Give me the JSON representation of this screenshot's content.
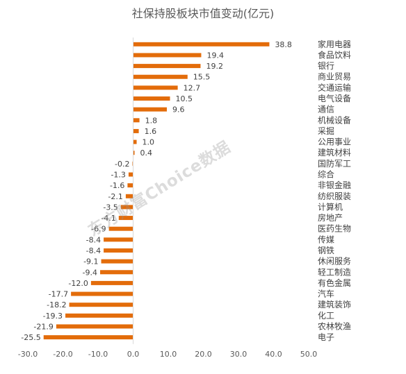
{
  "chart_data": {
    "type": "bar",
    "orientation": "horizontal",
    "title": "社保持股板块市值变动(亿元)",
    "xlabel": "",
    "ylabel": "",
    "xlim": [
      -30,
      50
    ],
    "x_ticks": [
      "-30.0",
      "-20.0",
      "-10.0",
      "0.0",
      "10.0",
      "20.0",
      "30.0",
      "40.0",
      "50.0"
    ],
    "grid": false,
    "legend": "none",
    "bar_color": "#E36C0A",
    "categories": [
      "家用电器",
      "食品饮料",
      "银行",
      "商业贸易",
      "交通运输",
      "电气设备",
      "通信",
      "机械设备",
      "采掘",
      "公用事业",
      "建筑材料",
      "国防军工",
      "综合",
      "非银金融",
      "纺织服装",
      "计算机",
      "房地产",
      "医药生物",
      "传媒",
      "钢铁",
      "休闲服务",
      "轻工制造",
      "有色金属",
      "汽车",
      "建筑装饰",
      "化工",
      "农林牧渔",
      "电子"
    ],
    "values": [
      38.8,
      19.4,
      19.2,
      15.5,
      12.7,
      10.5,
      9.6,
      1.8,
      1.6,
      1.0,
      0.4,
      -0.2,
      -1.3,
      -1.6,
      -2.1,
      -3.5,
      -4.1,
      -6.9,
      -8.4,
      -8.4,
      -9.1,
      -9.4,
      -12.0,
      -17.7,
      -18.2,
      -19.3,
      -21.9,
      -25.5
    ],
    "value_labels": [
      "38.8",
      "19.4",
      "19.2",
      "15.5",
      "12.7",
      "10.5",
      "9.6",
      "1.8",
      "1.6",
      "1.0",
      "0.4",
      "-0.2",
      "-1.3",
      "-1.6",
      "-2.1",
      "-3.5",
      "-4.1",
      "-6.9",
      "-8.4",
      "-8.4",
      "-9.1",
      "-9.4",
      "-12.0",
      "-17.7",
      "-18.2",
      "-19.3",
      "-21.9",
      "-25.5"
    ]
  },
  "watermark": "东方财富Choice数据"
}
